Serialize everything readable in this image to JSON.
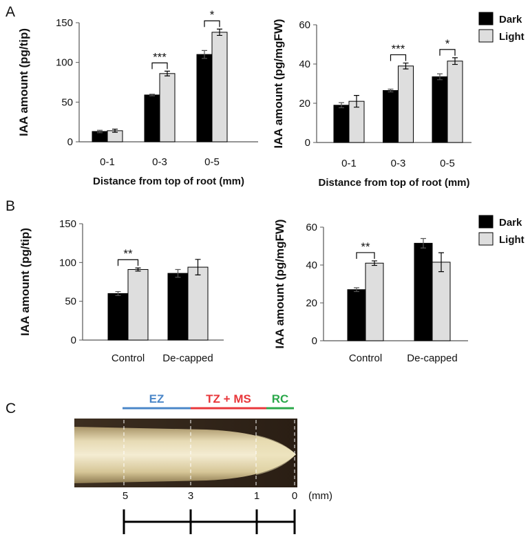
{
  "panel_labels": [
    "A",
    "B",
    "C"
  ],
  "chart_data": [
    {
      "type": "bar",
      "y_label": "IAA amount (pg/tip)",
      "x_label": "Distance from top of root (mm)",
      "categories": [
        "0-1",
        "0-3",
        "0-5"
      ],
      "series": [
        {
          "name": "Dark",
          "color": "#000000",
          "values": [
            13,
            59,
            110
          ],
          "errors": [
            1.5,
            1,
            5
          ]
        },
        {
          "name": "Light",
          "color": "#dedede",
          "values": [
            14,
            86,
            138
          ],
          "errors": [
            2,
            3,
            4
          ]
        }
      ],
      "significance": [
        null,
        "***",
        "*"
      ],
      "ylim": [
        0,
        150
      ],
      "yticks": [
        0,
        50,
        100,
        150
      ]
    },
    {
      "type": "bar",
      "y_label": "IAA amount (pg/mgFW)",
      "x_label": "Distance from top of root (mm)",
      "categories": [
        "0-1",
        "0-3",
        "0-5"
      ],
      "series": [
        {
          "name": "Dark",
          "color": "#000000",
          "values": [
            19,
            26.5,
            33.5
          ],
          "errors": [
            1.3,
            0.7,
            1.5
          ]
        },
        {
          "name": "Light",
          "color": "#dedede",
          "values": [
            21,
            39,
            41.5
          ],
          "errors": [
            3,
            1.5,
            1.7
          ]
        }
      ],
      "significance": [
        null,
        "***",
        "*"
      ],
      "ylim": [
        0,
        60
      ],
      "yticks": [
        0,
        20,
        40,
        60
      ],
      "legend": "upper right outside"
    },
    {
      "type": "bar",
      "y_label": "IAA amount (pg/tip)",
      "categories": [
        "Control",
        "De-capped"
      ],
      "series": [
        {
          "name": "Dark",
          "color": "#000000",
          "values": [
            60,
            86
          ],
          "errors": [
            2.5,
            5
          ]
        },
        {
          "name": "Light",
          "color": "#dedede",
          "values": [
            91,
            94
          ],
          "errors": [
            2,
            10
          ]
        }
      ],
      "significance": [
        "**",
        null
      ],
      "ylim": [
        0,
        150
      ],
      "yticks": [
        0,
        50,
        100,
        150
      ]
    },
    {
      "type": "bar",
      "y_label": "IAA amount (pg/mgFW)",
      "categories": [
        "Control",
        "De-capped"
      ],
      "series": [
        {
          "name": "Dark",
          "color": "#000000",
          "values": [
            27,
            51.5
          ],
          "errors": [
            1,
            2.5
          ]
        },
        {
          "name": "Light",
          "color": "#dedede",
          "values": [
            41,
            41.5
          ],
          "errors": [
            1.2,
            5
          ]
        }
      ],
      "significance": [
        "**",
        null
      ],
      "ylim": [
        0,
        60
      ],
      "yticks": [
        0,
        20,
        40,
        60
      ],
      "legend": "upper right outside"
    }
  ],
  "root_diagram": {
    "zones": [
      {
        "label": "EZ",
        "color": "#4a86c8"
      },
      {
        "label": "TZ + MS",
        "color": "#e8363a"
      },
      {
        "label": "RC",
        "color": "#2aa84a"
      }
    ],
    "scale_ticks": [
      5,
      3,
      1,
      0
    ],
    "scale_unit": "(mm)"
  }
}
